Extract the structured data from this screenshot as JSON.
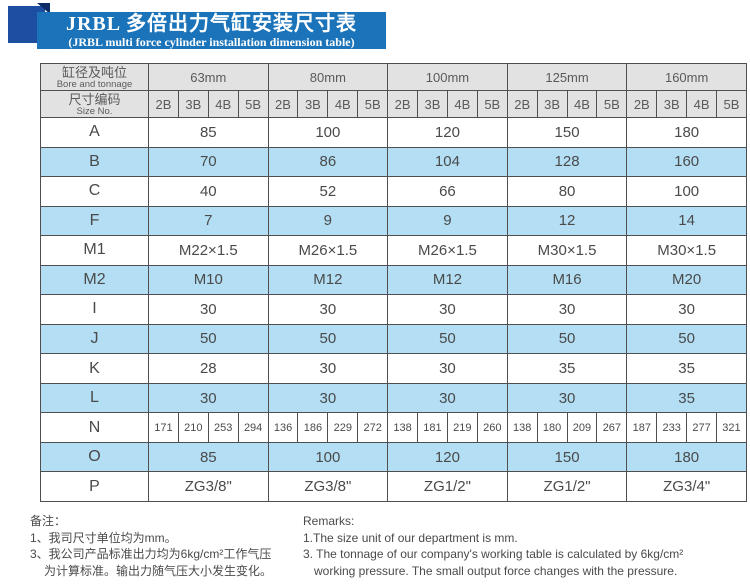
{
  "banner": {
    "title_zh": "JRBL 多倍出力气缸安装尺寸表",
    "title_en": "(JRBL multi force cylinder installation dimension table)"
  },
  "colors": {
    "banner_blue": "#1b74ba",
    "ribbon_navy": "#1d4fa0",
    "header_gray": "#e2e2e2",
    "row_shade_blue": "#b3def4",
    "border_gray": "#4f4f4f"
  },
  "table": {
    "corner": {
      "zh": "缸径及吨位",
      "en": "Bore and tonnage"
    },
    "corner2": {
      "zh": "尺寸编码",
      "en": "Size No."
    },
    "sizes": [
      "63mm",
      "80mm",
      "100mm",
      "125mm",
      "160mm"
    ],
    "codes": [
      "2B",
      "3B",
      "4B",
      "5B"
    ],
    "rows": [
      {
        "label": "A",
        "shade": false,
        "values": [
          "85",
          "100",
          "120",
          "150",
          "180"
        ]
      },
      {
        "label": "B",
        "shade": true,
        "values": [
          "70",
          "86",
          "104",
          "128",
          "160"
        ]
      },
      {
        "label": "C",
        "shade": false,
        "values": [
          "40",
          "52",
          "66",
          "80",
          "100"
        ]
      },
      {
        "label": "F",
        "shade": true,
        "values": [
          "7",
          "9",
          "9",
          "12",
          "14"
        ]
      },
      {
        "label": "M1",
        "shade": false,
        "values": [
          "M22×1.5",
          "M26×1.5",
          "M26×1.5",
          "M30×1.5",
          "M30×1.5"
        ]
      },
      {
        "label": "M2",
        "shade": true,
        "values": [
          "M10",
          "M12",
          "M12",
          "M16",
          "M20"
        ]
      },
      {
        "label": "I",
        "shade": false,
        "values": [
          "30",
          "30",
          "30",
          "30",
          "30"
        ]
      },
      {
        "label": "J",
        "shade": true,
        "values": [
          "50",
          "50",
          "50",
          "50",
          "50"
        ]
      },
      {
        "label": "K",
        "shade": false,
        "values": [
          "28",
          "30",
          "30",
          "35",
          "35"
        ]
      },
      {
        "label": "L",
        "shade": true,
        "values": [
          "30",
          "30",
          "30",
          "30",
          "35"
        ]
      },
      {
        "label": "N",
        "shade": false,
        "values": [
          [
            "171",
            "210",
            "253",
            "294"
          ],
          [
            "136",
            "186",
            "229",
            "272"
          ],
          [
            "138",
            "181",
            "219",
            "260"
          ],
          [
            "138",
            "180",
            "209",
            "267"
          ],
          [
            "187",
            "233",
            "277",
            "321"
          ]
        ]
      },
      {
        "label": "O",
        "shade": true,
        "values": [
          "85",
          "100",
          "120",
          "150",
          "180"
        ]
      },
      {
        "label": "P",
        "shade": false,
        "values": [
          "ZG3/8\"",
          "ZG3/8\"",
          "ZG1/2\"",
          "ZG1/2\"",
          "ZG3/4\""
        ]
      }
    ]
  },
  "notes_zh": {
    "heading": "备注：",
    "line1": "1、我司尺寸单位均为mm。",
    "line2": "3、我公司产品标准出力均为6kg/cm²工作气压",
    "line3": "为计算标准。输出力随气压大小发生变化。"
  },
  "notes_en": {
    "heading": "Remarks:",
    "line1": "1.The size unit of our department is mm.",
    "line2": "3. The tonnage of our company's working table is calculated by 6kg/cm²",
    "line3": "working pressure. The small output force changes with the pressure."
  }
}
